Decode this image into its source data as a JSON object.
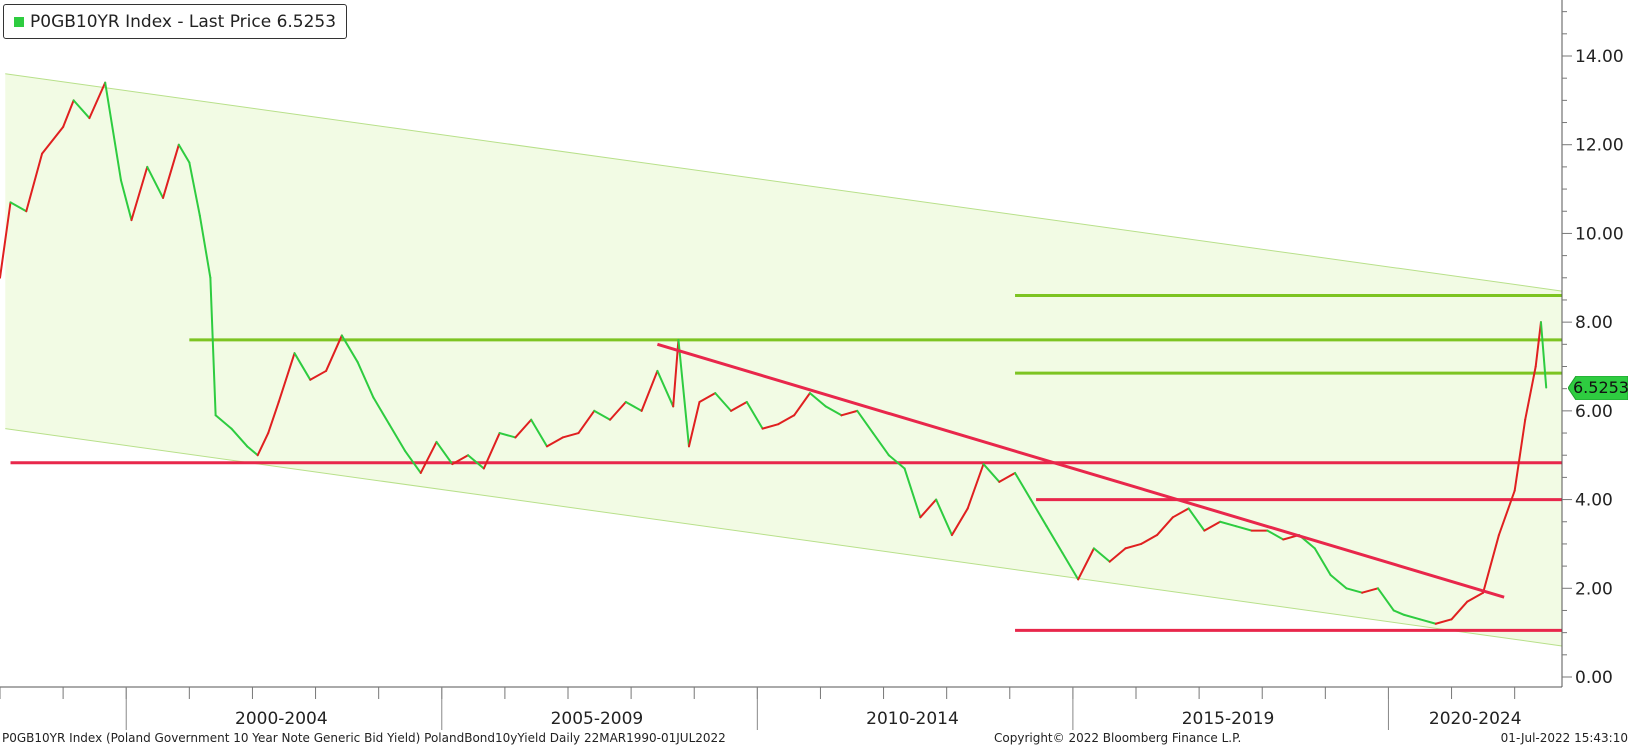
{
  "legend": {
    "label": "P0GB10YR Index - Last Price 6.5253",
    "color": "#2ecc40"
  },
  "footer": {
    "left": "P0GB10YR Index (Poland Government 10 Year Note Generic Bid Yield) PolandBond10yYield  Daily 22MAR1990-01JUL2022",
    "center": "Copyright© 2022 Bloomberg Finance L.P.",
    "right": "01-Jul-2022 15:43:10"
  },
  "last_price_label": "6.5253",
  "colors": {
    "up": "#2ecc40",
    "down": "#e02020",
    "support": "#e8274b",
    "resistance": "#7dc421",
    "channel_fill": "#f2fbe4",
    "channel_edge": "#b8e08a"
  },
  "chart_data": {
    "type": "line",
    "ylim": [
      0,
      15
    ],
    "yticks": [
      "0.00",
      "2.00",
      "4.00",
      "6.00",
      "8.00",
      "10.00",
      "12.00",
      "14.00"
    ],
    "ytick_values": [
      0,
      2,
      4,
      6,
      8,
      10,
      12,
      14
    ],
    "xlim": [
      "1998-01",
      "2022-10"
    ],
    "x_periods": [
      "2000-2004",
      "2005-2009",
      "2010-2014",
      "2015-2019",
      "2020-2024"
    ],
    "x_period_ranges": [
      [
        "2000-01",
        "2004-12"
      ],
      [
        "2005-01",
        "2009-12"
      ],
      [
        "2010-01",
        "2014-12"
      ],
      [
        "2015-01",
        "2019-12"
      ],
      [
        "2020-01",
        "2024-12"
      ]
    ],
    "series": [
      {
        "x": [
          "1998-01",
          "1998-03",
          "1998-06",
          "1998-09",
          "1999-01",
          "1999-03",
          "1999-06",
          "1999-09",
          "1999-12",
          "2000-02",
          "2000-05",
          "2000-08",
          "2000-11",
          "2001-01",
          "2001-03",
          "2001-05",
          "2001-06",
          "2001-09",
          "2001-12",
          "2002-02",
          "2002-04",
          "2002-06",
          "2002-09",
          "2002-12",
          "2003-03",
          "2003-06",
          "2003-09",
          "2003-12",
          "2004-03",
          "2004-06",
          "2004-09",
          "2004-12",
          "2005-03",
          "2005-06",
          "2005-09",
          "2005-12",
          "2006-03",
          "2006-06",
          "2006-09",
          "2006-12",
          "2007-03",
          "2007-06",
          "2007-09",
          "2007-12",
          "2008-03",
          "2008-06",
          "2008-09",
          "2008-10",
          "2008-12",
          "2009-02",
          "2009-05",
          "2009-08",
          "2009-11",
          "2010-02",
          "2010-05",
          "2010-08",
          "2010-11",
          "2011-02",
          "2011-05",
          "2011-08",
          "2011-11",
          "2012-02",
          "2012-05",
          "2012-08",
          "2012-11",
          "2013-02",
          "2013-05",
          "2013-08",
          "2013-11",
          "2014-02",
          "2014-05",
          "2014-08",
          "2014-11",
          "2015-02",
          "2015-05",
          "2015-08",
          "2015-11",
          "2016-02",
          "2016-05",
          "2016-08",
          "2016-11",
          "2017-02",
          "2017-05",
          "2017-08",
          "2017-11",
          "2018-02",
          "2018-05",
          "2018-08",
          "2018-11",
          "2019-02",
          "2019-05",
          "2019-08",
          "2019-11",
          "2020-02",
          "2020-04",
          "2020-07",
          "2020-10",
          "2021-01",
          "2021-04",
          "2021-07",
          "2021-10",
          "2022-01",
          "2022-03",
          "2022-05",
          "2022-06",
          "2022-07"
        ],
        "values": [
          9.0,
          10.7,
          10.5,
          11.8,
          12.4,
          13.0,
          12.6,
          13.4,
          11.2,
          10.3,
          11.5,
          10.8,
          12.0,
          11.6,
          10.4,
          9.0,
          5.9,
          5.6,
          5.2,
          5.0,
          5.5,
          6.2,
          7.3,
          6.7,
          6.9,
          7.7,
          7.1,
          6.3,
          5.7,
          5.1,
          4.6,
          5.3,
          4.8,
          5.0,
          4.7,
          5.5,
          5.4,
          5.8,
          5.2,
          5.4,
          5.5,
          6.0,
          5.8,
          6.2,
          6.0,
          6.9,
          6.1,
          7.6,
          5.2,
          6.2,
          6.4,
          6.0,
          6.2,
          5.6,
          5.7,
          5.9,
          6.4,
          6.1,
          5.9,
          6.0,
          5.5,
          5.0,
          4.7,
          3.6,
          4.0,
          3.2,
          3.8,
          4.8,
          4.4,
          4.6,
          4.0,
          3.4,
          2.8,
          2.2,
          2.9,
          2.6,
          2.9,
          3.0,
          3.2,
          3.6,
          3.8,
          3.3,
          3.5,
          3.4,
          3.3,
          3.3,
          3.1,
          3.2,
          2.9,
          2.3,
          2.0,
          1.9,
          2.0,
          1.5,
          1.4,
          1.3,
          1.2,
          1.3,
          1.7,
          1.9,
          3.2,
          4.2,
          5.8,
          7.0,
          8.0,
          6.5253
        ]
      }
    ],
    "horizontal_levels": [
      {
        "value": 8.6,
        "color": "green",
        "from": "2014-02"
      },
      {
        "value": 7.6,
        "color": "green",
        "from": "2001-01"
      },
      {
        "value": 6.85,
        "color": "green",
        "from": "2014-02"
      },
      {
        "value": 4.83,
        "color": "red",
        "from": "1998-03"
      },
      {
        "value": 4.0,
        "color": "red",
        "from": "2014-06"
      },
      {
        "value": 1.05,
        "color": "red",
        "from": "2014-02"
      }
    ],
    "trendline": {
      "from": [
        "2008-06",
        7.5
      ],
      "to": [
        "2021-11",
        1.8
      ],
      "color": "red"
    },
    "channel": {
      "upper": [
        [
          "1998-02",
          13.6
        ],
        [
          "2022-10",
          8.7
        ]
      ],
      "lower": [
        [
          "1998-02",
          5.6
        ],
        [
          "2022-10",
          0.7
        ]
      ]
    },
    "last_price": 6.5253
  }
}
